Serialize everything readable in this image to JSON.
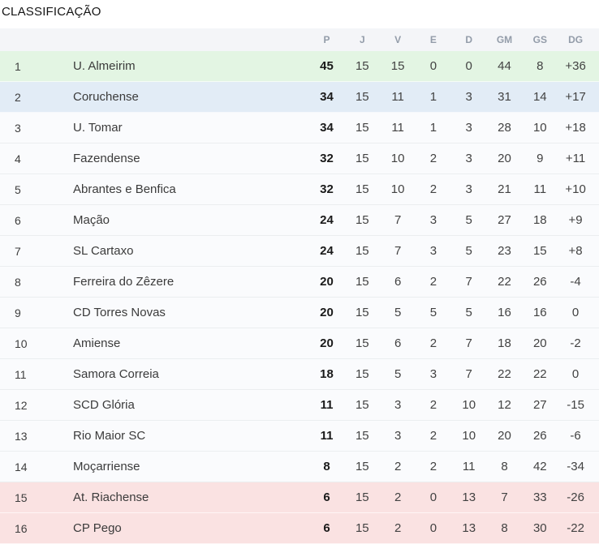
{
  "title": "CLASSIFICAÇÃO",
  "table": {
    "columns": [
      "P",
      "J",
      "V",
      "E",
      "D",
      "GM",
      "GS",
      "DG"
    ],
    "rows": [
      {
        "pos": "1",
        "team": "U. Almeirim",
        "highlight": "green",
        "stats": [
          "45",
          "15",
          "15",
          "0",
          "0",
          "44",
          "8",
          "+36"
        ]
      },
      {
        "pos": "2",
        "team": "Coruchense",
        "highlight": "blue",
        "stats": [
          "34",
          "15",
          "11",
          "1",
          "3",
          "31",
          "14",
          "+17"
        ]
      },
      {
        "pos": "3",
        "team": "U. Tomar",
        "highlight": "none",
        "stats": [
          "34",
          "15",
          "11",
          "1",
          "3",
          "28",
          "10",
          "+18"
        ]
      },
      {
        "pos": "4",
        "team": "Fazendense",
        "highlight": "none",
        "stats": [
          "32",
          "15",
          "10",
          "2",
          "3",
          "20",
          "9",
          "+11"
        ]
      },
      {
        "pos": "5",
        "team": "Abrantes e Benfica",
        "highlight": "none",
        "stats": [
          "32",
          "15",
          "10",
          "2",
          "3",
          "21",
          "11",
          "+10"
        ]
      },
      {
        "pos": "6",
        "team": "Mação",
        "highlight": "none",
        "stats": [
          "24",
          "15",
          "7",
          "3",
          "5",
          "27",
          "18",
          "+9"
        ]
      },
      {
        "pos": "7",
        "team": "SL Cartaxo",
        "highlight": "none",
        "stats": [
          "24",
          "15",
          "7",
          "3",
          "5",
          "23",
          "15",
          "+8"
        ]
      },
      {
        "pos": "8",
        "team": "Ferreira do Zêzere",
        "highlight": "none",
        "stats": [
          "20",
          "15",
          "6",
          "2",
          "7",
          "22",
          "26",
          "-4"
        ]
      },
      {
        "pos": "9",
        "team": "CD Torres Novas",
        "highlight": "none",
        "stats": [
          "20",
          "15",
          "5",
          "5",
          "5",
          "16",
          "16",
          "0"
        ]
      },
      {
        "pos": "10",
        "team": "Amiense",
        "highlight": "none",
        "stats": [
          "20",
          "15",
          "6",
          "2",
          "7",
          "18",
          "20",
          "-2"
        ]
      },
      {
        "pos": "11",
        "team": "Samora Correia",
        "highlight": "none",
        "stats": [
          "18",
          "15",
          "5",
          "3",
          "7",
          "22",
          "22",
          "0"
        ]
      },
      {
        "pos": "12",
        "team": "SCD Glória",
        "highlight": "none",
        "stats": [
          "11",
          "15",
          "3",
          "2",
          "10",
          "12",
          "27",
          "-15"
        ]
      },
      {
        "pos": "13",
        "team": "Rio Maior SC",
        "highlight": "none",
        "stats": [
          "11",
          "15",
          "3",
          "2",
          "10",
          "20",
          "26",
          "-6"
        ]
      },
      {
        "pos": "14",
        "team": "Moçarriense",
        "highlight": "none",
        "stats": [
          "8",
          "15",
          "2",
          "2",
          "11",
          "8",
          "42",
          "-34"
        ]
      },
      {
        "pos": "15",
        "team": "At. Riachense",
        "highlight": "red",
        "stats": [
          "6",
          "15",
          "2",
          "0",
          "13",
          "7",
          "33",
          "-26"
        ]
      },
      {
        "pos": "16",
        "team": "CP Pego",
        "highlight": "red",
        "stats": [
          "6",
          "15",
          "2",
          "0",
          "13",
          "8",
          "30",
          "-22"
        ]
      }
    ]
  },
  "colors": {
    "leader_green": "#e3f5e3",
    "promotion_blue": "#e2ecf6",
    "relegation_red": "#fae2e2",
    "header_bg": "#f4f5f8",
    "header_text": "#939ca9",
    "row_bg": "#fafbfd",
    "row_text": "#3b3b3b",
    "points_text": "#1a1a1a"
  }
}
